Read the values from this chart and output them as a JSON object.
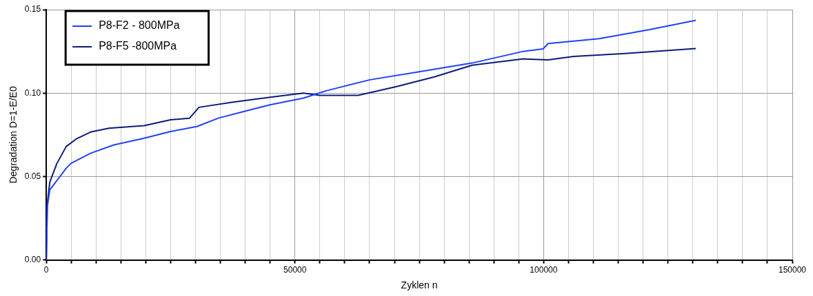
{
  "chart_data": {
    "type": "line",
    "xlabel": "Zyklen n",
    "ylabel": "Degradation D=1-E/E0",
    "xlim": [
      0,
      150000
    ],
    "ylim": [
      0,
      0.15
    ],
    "xticks": [
      0,
      {
        "value": 5000,
        "label": null
      },
      {
        "value": 10000,
        "label": null
      },
      {
        "value": 15000,
        "label": null
      },
      {
        "value": 20000,
        "label": null
      },
      {
        "value": 25000,
        "label": null
      },
      {
        "value": 30000,
        "label": null
      },
      {
        "value": 35000,
        "label": null
      },
      {
        "value": 40000,
        "label": null
      },
      {
        "value": 45000,
        "label": null
      },
      50000,
      {
        "value": 55000,
        "label": null
      },
      {
        "value": 60000,
        "label": null
      },
      {
        "value": 65000,
        "label": null
      },
      {
        "value": 70000,
        "label": null
      },
      {
        "value": 75000,
        "label": null
      },
      {
        "value": 80000,
        "label": null
      },
      {
        "value": 85000,
        "label": null
      },
      {
        "value": 90000,
        "label": null
      },
      {
        "value": 95000,
        "label": null
      },
      100000,
      {
        "value": 105000,
        "label": null
      },
      {
        "value": 110000,
        "label": null
      },
      {
        "value": 115000,
        "label": null
      },
      {
        "value": 120000,
        "label": null
      },
      {
        "value": 125000,
        "label": null
      },
      {
        "value": 130000,
        "label": null
      },
      {
        "value": 135000,
        "label": null
      },
      {
        "value": 140000,
        "label": null
      },
      {
        "value": 145000,
        "label": null
      },
      150000
    ],
    "yticks": [
      {
        "value": 0,
        "label": "0.00"
      },
      {
        "value": 0.05,
        "label": "0.05"
      },
      {
        "value": 0.1,
        "label": "0.10"
      },
      {
        "value": 0.15,
        "label": "0.15"
      }
    ],
    "grid": true,
    "legend": "top left",
    "marker": "none",
    "line_style": "solid",
    "series": [
      {
        "name": "P8-F2 - 800MPa",
        "color": "#1f3fff",
        "x": [
          0,
          200,
          700,
          4000,
          5000,
          8900,
          13600,
          19700,
          25000,
          30300,
          34600,
          39700,
          45000,
          51700,
          56400,
          65100,
          75400,
          85600,
          95900,
          99900,
          100900,
          111100,
          121300,
          130600
        ],
        "values": [
          0,
          0.032,
          0.042,
          0.055,
          0.058,
          0.064,
          0.069,
          0.073,
          0.077,
          0.08,
          0.085,
          0.089,
          0.093,
          0.097,
          0.1015,
          0.108,
          0.113,
          0.118,
          0.125,
          0.1265,
          0.1297,
          0.1326,
          0.138,
          0.1436
        ]
      },
      {
        "name": "P8-F5 -800MPa",
        "color": "#0a1a7a",
        "x": [
          0,
          200,
          700,
          2100,
          4000,
          6000,
          8900,
          12600,
          19700,
          25000,
          28800,
          30700,
          37400,
          45000,
          51700,
          55000,
          62700,
          70300,
          78000,
          85600,
          95900,
          100900,
          106000,
          116300,
          130600
        ],
        "values": [
          0,
          0.034,
          0.0466,
          0.0577,
          0.068,
          0.0725,
          0.0767,
          0.079,
          0.0805,
          0.084,
          0.085,
          0.0915,
          0.0945,
          0.0975,
          0.1,
          0.0987,
          0.0987,
          0.1038,
          0.1097,
          0.1167,
          0.1205,
          0.1199,
          0.122,
          0.1237,
          0.1267
        ]
      }
    ]
  }
}
